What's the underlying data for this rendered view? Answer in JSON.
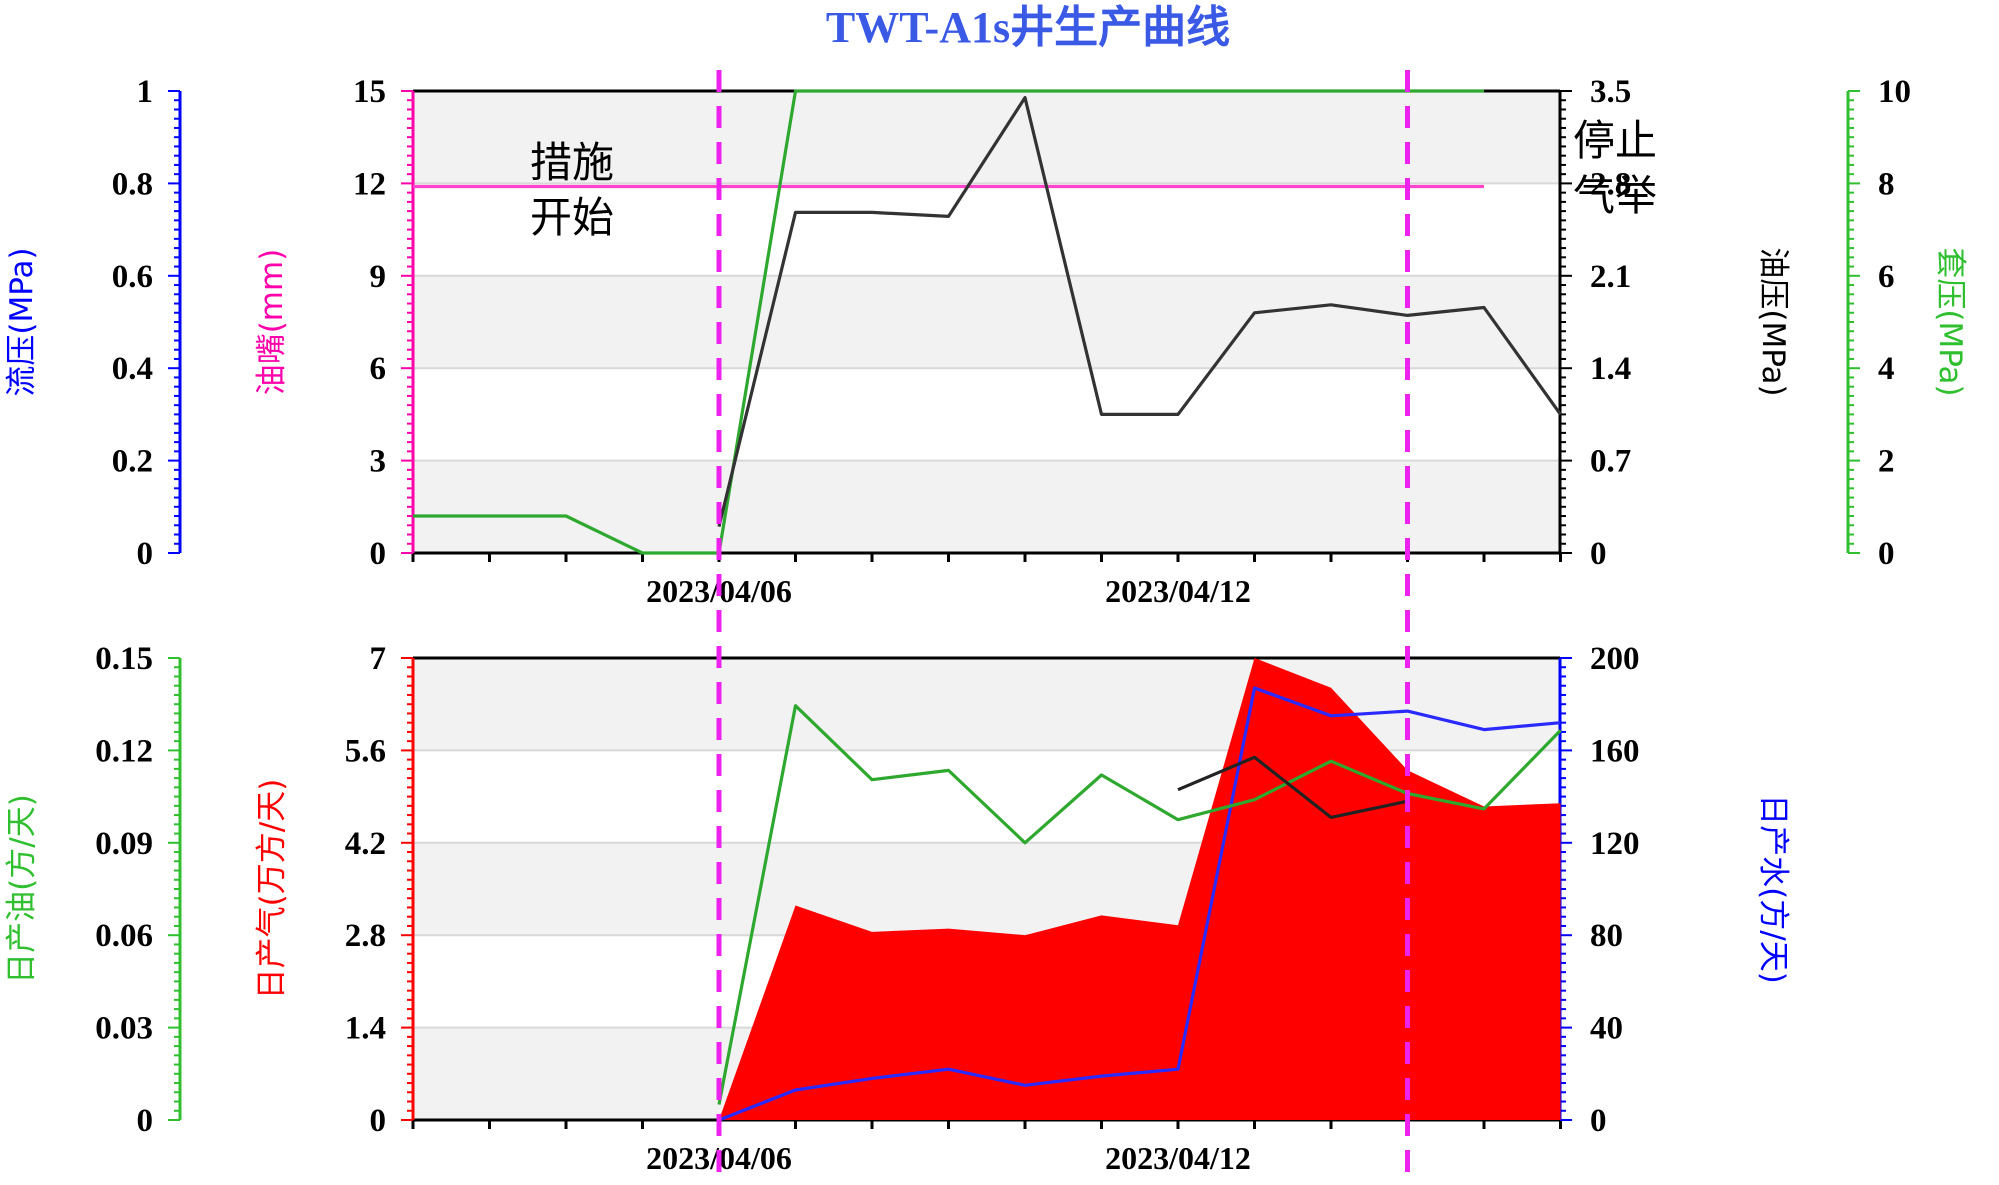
{
  "chart_data": [
    {
      "type": "line",
      "title": "TWT-A1s井生产曲线",
      "title_color": "#3a5ae6",
      "x_dates": [
        "2023/04/02",
        "2023/04/03",
        "2023/04/04",
        "2023/04/05",
        "2023/04/06",
        "2023/04/07",
        "2023/04/08",
        "2023/04/09",
        "2023/04/10",
        "2023/04/11",
        "2023/04/12",
        "2023/04/13",
        "2023/04/14",
        "2023/04/15",
        "2023/04/16"
      ],
      "x_tick_labels": [
        "2023/04/06",
        "2023/04/12"
      ],
      "axes": {
        "left_outer": {
          "label": "流压(MPa)",
          "color": "#0000ff",
          "ticks": [
            "0",
            "0.2",
            "0.4",
            "0.6",
            "0.8",
            "1"
          ],
          "range": [
            0,
            1
          ]
        },
        "left_inner": {
          "label": "油嘴(mm)",
          "color": "#ff00aa",
          "ticks": [
            "0",
            "3",
            "6",
            "9",
            "12",
            "15"
          ],
          "range": [
            0,
            15
          ]
        },
        "right_inner": {
          "label": "油压(MPa)",
          "color": "#000000",
          "ticks": [
            "0",
            "0.7",
            "1.4",
            "2.1",
            "2.8",
            "3.5"
          ],
          "range": [
            0,
            3.5
          ]
        },
        "right_outer": {
          "label": "套压(MPa)",
          "color": "#2fbf2f",
          "ticks": [
            "0",
            "2",
            "4",
            "6",
            "8",
            "10"
          ],
          "range": [
            0,
            10
          ]
        }
      },
      "series": [
        {
          "name": "油嘴(mm)",
          "axis": "left_inner",
          "color": "#ff44cc",
          "x": [
            "2023/04/02",
            "2023/04/16"
          ],
          "values": [
            11.9,
            11.9
          ]
        },
        {
          "name": "套压(MPa)",
          "axis": "right_outer",
          "color": "#2fa82f",
          "x": [
            "2023/04/02",
            "2023/04/04",
            "2023/04/05",
            "2023/04/06",
            "2023/04/06",
            "2023/04/07",
            "2023/04/16"
          ],
          "values": [
            0.8,
            0.8,
            0,
            0,
            0,
            10,
            10
          ]
        },
        {
          "name": "油压(MPa)",
          "axis": "right_inner",
          "color": "#333333",
          "x": [
            "2023/04/06",
            "2023/04/07",
            "2023/04/08",
            "2023/04/09",
            "2023/04/10",
            "2023/04/11",
            "2023/04/12",
            "2023/04/13",
            "2023/04/14",
            "2023/04/15",
            "2023/04/16",
            "2023/04/17"
          ],
          "values": [
            0.2,
            2.58,
            2.58,
            2.55,
            3.45,
            1.05,
            1.05,
            1.82,
            1.88,
            1.8,
            1.86,
            1.05
          ]
        }
      ],
      "annotations": [
        {
          "text_lines": [
            "措施",
            "开始"
          ],
          "at": "2023/04/06"
        },
        {
          "text_lines": [
            "停止",
            "气举"
          ],
          "at": "2023/04/15"
        }
      ],
      "vertical_markers": [
        "2023/04/06",
        "2023/04/15"
      ]
    },
    {
      "type": "area",
      "x_dates": [
        "2023/04/06",
        "2023/04/07",
        "2023/04/08",
        "2023/04/09",
        "2023/04/10",
        "2023/04/11",
        "2023/04/12",
        "2023/04/13",
        "2023/04/14",
        "2023/04/15",
        "2023/04/16",
        "2023/04/17"
      ],
      "x_tick_labels": [
        "2023/04/06",
        "2023/04/12"
      ],
      "axes": {
        "left_outer": {
          "label": "日产油(方/天)",
          "color": "#2fbf2f",
          "ticks": [
            "0",
            "0.03",
            "0.06",
            "0.09",
            "0.12",
            "0.15"
          ],
          "range": [
            0,
            0.15
          ]
        },
        "left_inner": {
          "label": "日产气(万方/天)",
          "color": "#ff0000",
          "ticks": [
            "0",
            "1.4",
            "2.8",
            "4.2",
            "5.6",
            "7"
          ],
          "range": [
            0,
            7
          ]
        },
        "right_inner": {
          "label": "日产水(方/天)",
          "color": "#0000ff",
          "ticks": [
            "0",
            "40",
            "80",
            "120",
            "160",
            "200"
          ],
          "range": [
            0,
            200
          ]
        }
      },
      "series": [
        {
          "name": "日产气(万方/天)",
          "axis": "left_inner",
          "color": "#ff0000",
          "kind": "area",
          "values": [
            0,
            3.25,
            2.85,
            2.9,
            2.8,
            3.1,
            2.95,
            7.0,
            6.55,
            5.3,
            4.75,
            4.8
          ]
        },
        {
          "name": "日产水(方/天)",
          "axis": "right_inner",
          "color": "#2a2aff",
          "kind": "line",
          "values": [
            0,
            13,
            18,
            22,
            15,
            19,
            22,
            187,
            175,
            177,
            169,
            172
          ]
        },
        {
          "name": "日产油(方/天)",
          "axis": "left_outer",
          "color": "#2fa82f",
          "kind": "line",
          "values": [
            0.005,
            0.1345,
            0.1105,
            0.1135,
            0.09,
            0.112,
            0.0975,
            0.104,
            0.1165,
            0.106,
            0.101,
            0.1265
          ]
        },
        {
          "name": "",
          "axis": "right_inner",
          "color": "#222222",
          "kind": "line",
          "x": [
            "2023/04/12",
            "2023/04/13",
            "2023/04/14",
            "2023/04/15"
          ],
          "values": [
            143,
            157,
            131,
            138
          ]
        }
      ],
      "vertical_markers": [
        "2023/04/06",
        "2023/04/15"
      ]
    }
  ]
}
